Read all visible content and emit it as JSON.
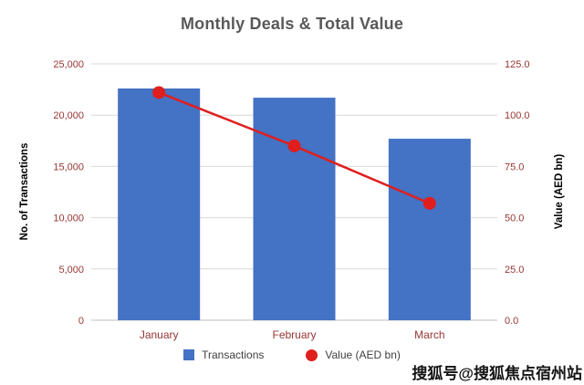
{
  "title": "Monthly Deals & Total Value",
  "watermark": "搜狐号@搜狐焦点宿州站",
  "chart_data": {
    "type": "combo-bar-line",
    "categories": [
      "January",
      "February",
      "March"
    ],
    "series": [
      {
        "name": "Transactions",
        "type": "bar",
        "axis": "left",
        "color": "#4472C4",
        "values": [
          22600,
          21700,
          17700
        ]
      },
      {
        "name": "Value (AED bn)",
        "type": "line",
        "axis": "right",
        "color": "#E01E1E",
        "values": [
          111,
          85,
          57
        ]
      }
    ],
    "left_axis": {
      "label": "No. of Transactions",
      "min": 0,
      "max": 25000,
      "step": 5000,
      "tick_labels": [
        "0",
        "5,000",
        "10,000",
        "15,000",
        "20,000",
        "25,000"
      ]
    },
    "right_axis": {
      "label": "Value (AED bn)",
      "min": 0,
      "max": 125,
      "step": 25,
      "tick_labels": [
        "0.0",
        "25.0",
        "50.0",
        "75.0",
        "100.0",
        "125.0"
      ]
    },
    "legend": [
      {
        "label": "Transactions",
        "marker": "square",
        "color": "#4472C4"
      },
      {
        "label": "Value (AED bn)",
        "marker": "circle",
        "color": "#E01E1E"
      }
    ],
    "grid": true,
    "legend_position": "bottom",
    "styles": {
      "tick_color": "#963634",
      "title_color": "#595959",
      "grid_color": "#d9d9d9",
      "baseline_color": "#bfbfbf"
    }
  }
}
